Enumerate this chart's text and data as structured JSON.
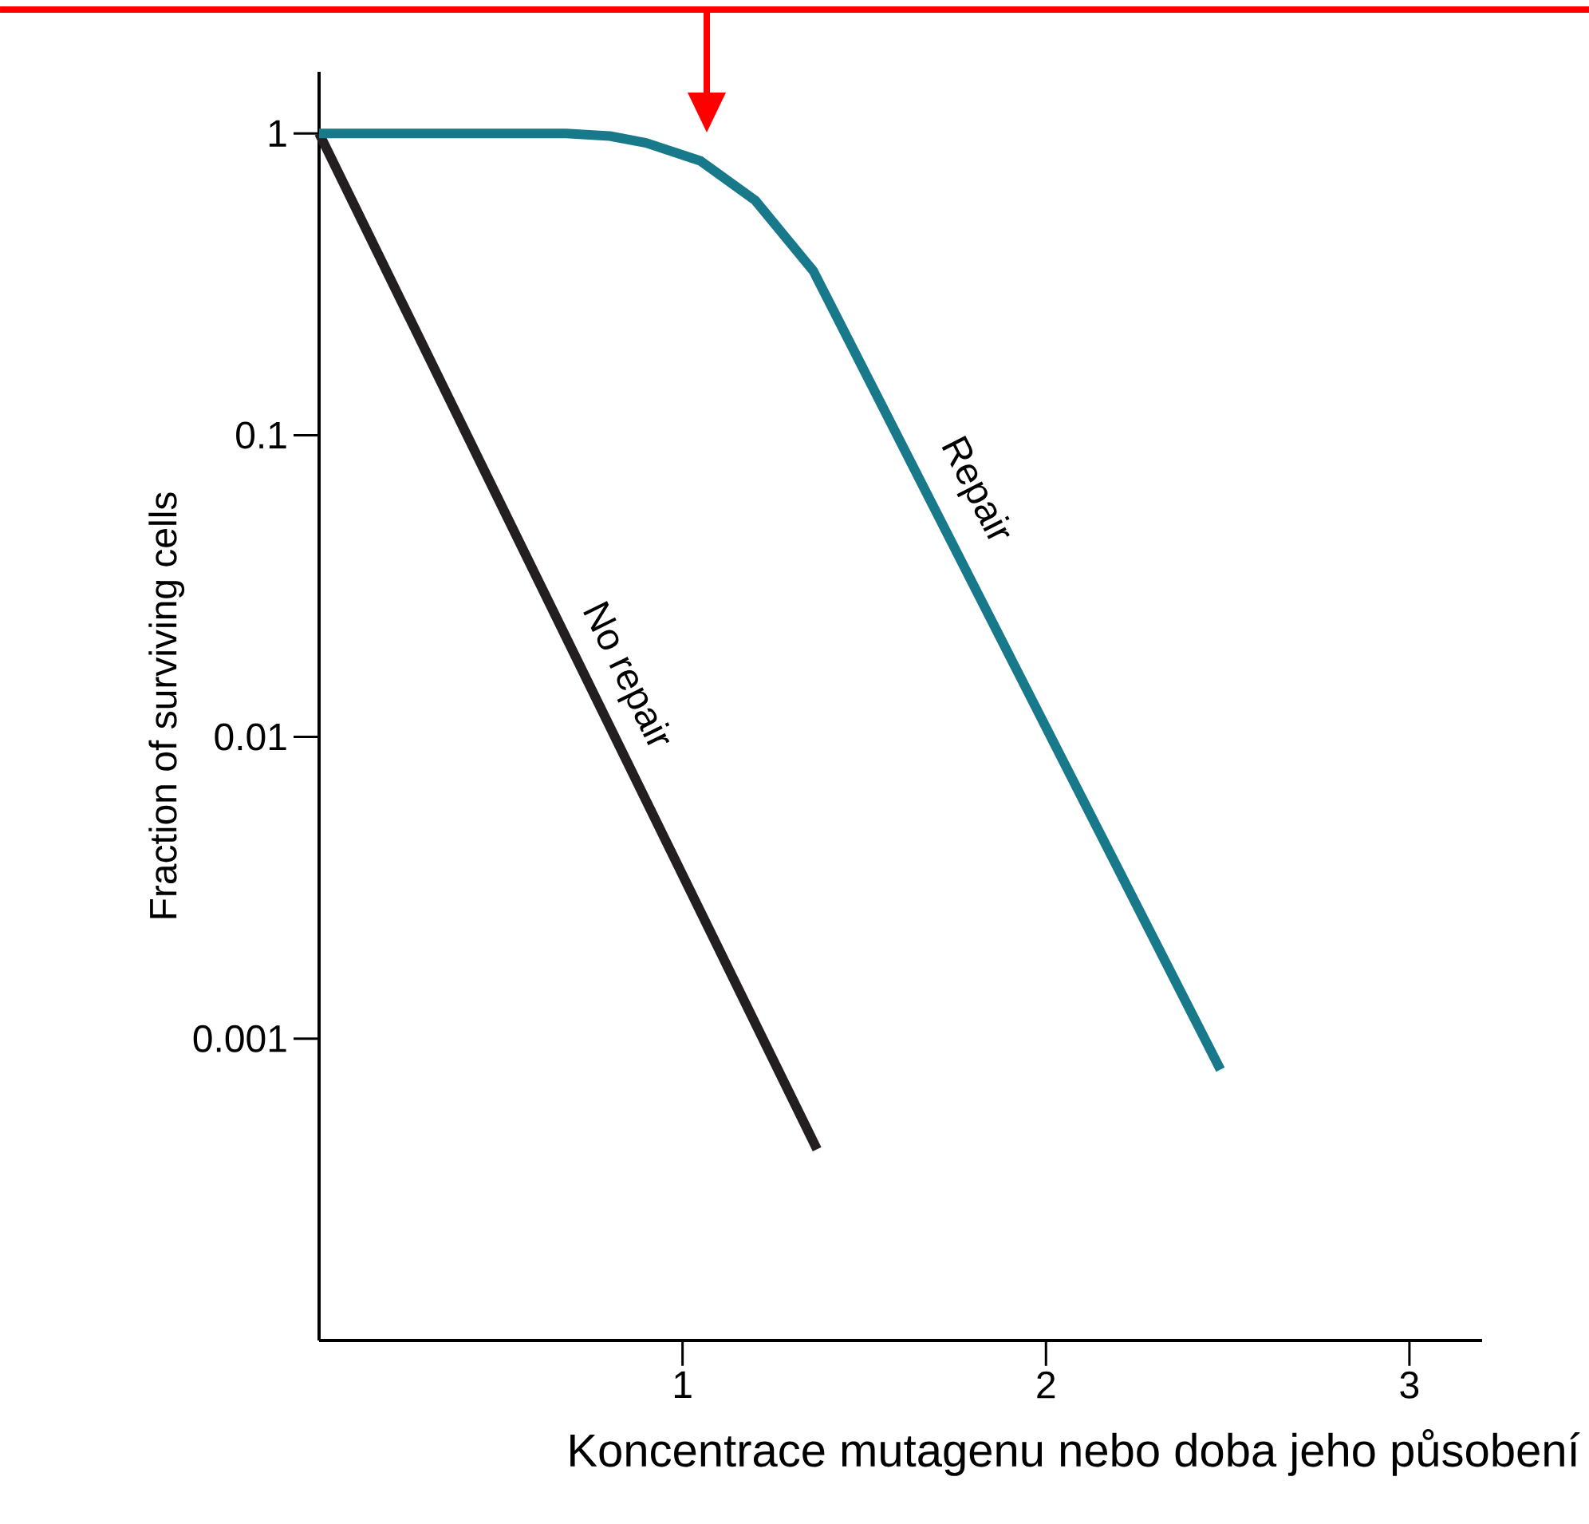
{
  "chart_data": {
    "type": "line",
    "xlabel": "Koncentrace mutagenu nebo doba jeho působení",
    "ylabel": "Fraction of surviving cells",
    "series": [
      {
        "name": "No repair",
        "color": "#231f20",
        "x": [
          0,
          1.37
        ],
        "values": [
          1,
          0.00043
        ]
      },
      {
        "name": "Repair",
        "color": "#17798a",
        "x": [
          0,
          0.68,
          0.8,
          0.9,
          1.05,
          1.2,
          1.36,
          2.48
        ],
        "values": [
          1,
          1,
          0.98,
          0.93,
          0.81,
          0.6,
          0.35,
          0.00079
        ]
      }
    ],
    "xlim": [
      0,
      3.2
    ],
    "ylim": [
      0.0001,
      1.6
    ],
    "xticks": [
      1,
      2,
      3
    ],
    "yticks": [
      1,
      0.1,
      0.01,
      0.001
    ],
    "log": "y"
  }
}
